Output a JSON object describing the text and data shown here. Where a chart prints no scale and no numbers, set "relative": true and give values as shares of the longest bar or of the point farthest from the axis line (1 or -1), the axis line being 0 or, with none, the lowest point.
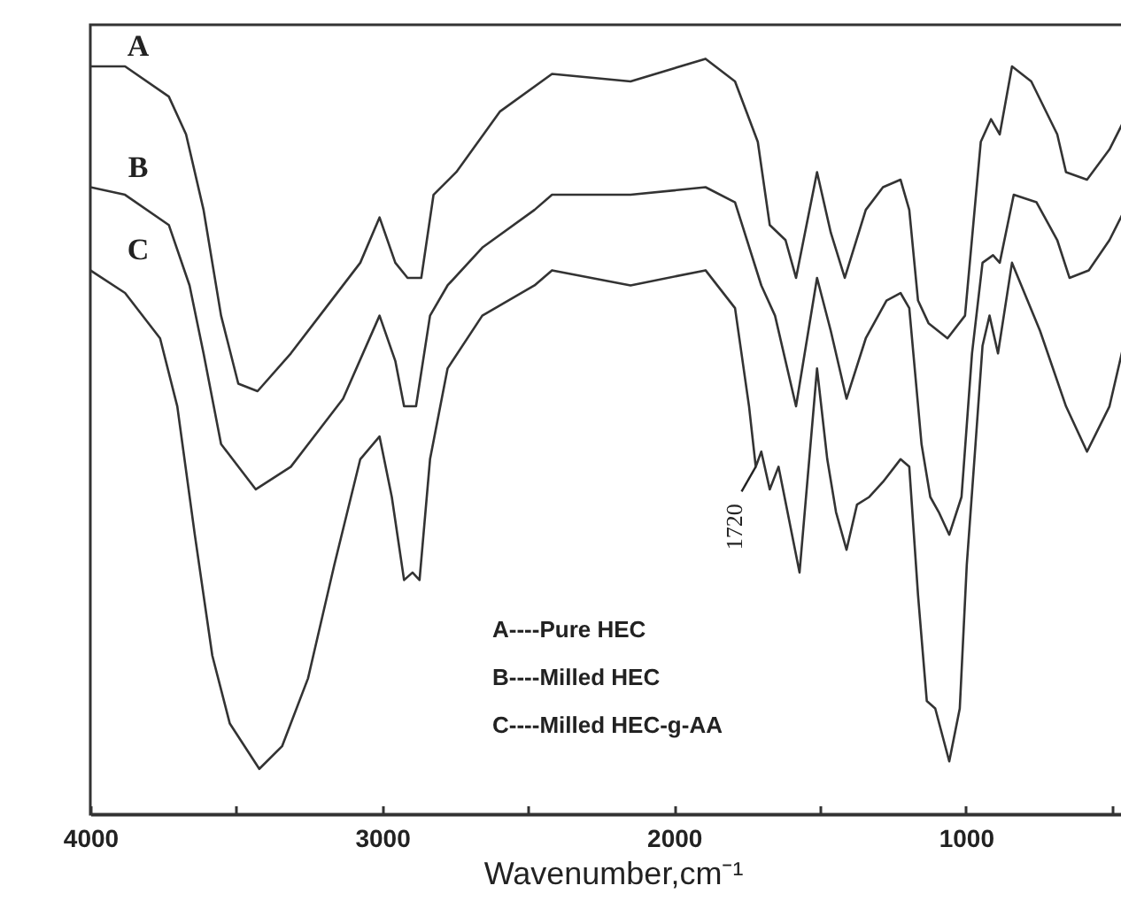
{
  "chart_data": {
    "type": "line",
    "relative": true,
    "xlabel": "Wavenumber,cm⁻¹",
    "xlim": [
      4000,
      420
    ],
    "xticks": [
      4000,
      {
        "value": 3500,
        "label": null
      },
      3000,
      {
        "value": 2500,
        "label": null
      },
      2000,
      {
        "value": 1500,
        "label": null
      },
      1000,
      {
        "value": 500,
        "label": null
      }
    ],
    "grid": false,
    "series": [
      {
        "name": "A",
        "color": "#333333",
        "x": [
          4000,
          3881,
          3731,
          3672,
          3612,
          3552,
          3493,
          3427,
          3313,
          3194,
          3075,
          3009,
          2955,
          2913,
          2866,
          2824,
          2746,
          2597,
          2418,
          2149,
          1892,
          1791,
          1713,
          1672,
          1618,
          1582,
          1510,
          1463,
          1415,
          1343,
          1284,
          1224,
          1194,
          1164,
          1128,
          1063,
          1003,
          949,
          914,
          884,
          842,
          776,
          687,
          657,
          585,
          508,
          430
        ],
        "values": [
          0.99,
          0.99,
          0.95,
          0.9,
          0.8,
          0.66,
          0.57,
          0.56,
          0.61,
          0.67,
          0.73,
          0.79,
          0.73,
          0.71,
          0.71,
          0.82,
          0.85,
          0.93,
          0.98,
          0.97,
          1,
          0.97,
          0.89,
          0.78,
          0.76,
          0.71,
          0.85,
          0.77,
          0.71,
          0.8,
          0.83,
          0.84,
          0.8,
          0.68,
          0.65,
          0.63,
          0.66,
          0.89,
          0.92,
          0.9,
          0.99,
          0.97,
          0.9,
          0.85,
          0.84,
          0.88,
          0.94
        ]
      },
      {
        "name": "B",
        "color": "#333333",
        "x": [
          4000,
          3881,
          3731,
          3660,
          3612,
          3552,
          3433,
          3313,
          3134,
          3009,
          2955,
          2925,
          2884,
          2836,
          2776,
          2657,
          2478,
          2418,
          2149,
          1892,
          1791,
          1701,
          1654,
          1582,
          1510,
          1463,
          1409,
          1343,
          1272,
          1224,
          1194,
          1152,
          1122,
          1093,
          1057,
          1015,
          979,
          943,
          907,
          884,
          836,
          758,
          687,
          645,
          579,
          508,
          430
        ],
        "values": [
          0.83,
          0.82,
          0.78,
          0.7,
          0.61,
          0.49,
          0.43,
          0.46,
          0.55,
          0.66,
          0.6,
          0.54,
          0.54,
          0.66,
          0.7,
          0.75,
          0.8,
          0.82,
          0.82,
          0.83,
          0.81,
          0.7,
          0.66,
          0.54,
          0.71,
          0.64,
          0.55,
          0.63,
          0.68,
          0.69,
          0.67,
          0.49,
          0.42,
          0.4,
          0.37,
          0.42,
          0.61,
          0.73,
          0.74,
          0.73,
          0.82,
          0.81,
          0.76,
          0.71,
          0.72,
          0.76,
          0.82
        ]
      },
      {
        "name": "C",
        "color": "#333333",
        "x": [
          4000,
          3881,
          3761,
          3702,
          3642,
          3582,
          3522,
          3421,
          3343,
          3254,
          3164,
          3075,
          3009,
          2967,
          2925,
          2896,
          2872,
          2836,
          2776,
          2657,
          2478,
          2418,
          2149,
          1892,
          1791,
          1743,
          1720,
          1701,
          1672,
          1642,
          1570,
          1510,
          1475,
          1445,
          1409,
          1373,
          1331,
          1284,
          1224,
          1194,
          1164,
          1134,
          1105,
          1057,
          1021,
          997,
          967,
          943,
          919,
          890,
          842,
          746,
          657,
          585,
          508,
          430
        ],
        "values": [
          0.72,
          0.69,
          0.63,
          0.54,
          0.37,
          0.21,
          0.12,
          0.06,
          0.09,
          0.18,
          0.33,
          0.47,
          0.5,
          0.42,
          0.31,
          0.32,
          0.31,
          0.47,
          0.59,
          0.66,
          0.7,
          0.72,
          0.7,
          0.72,
          0.67,
          0.54,
          0.46,
          0.48,
          0.43,
          0.46,
          0.32,
          0.59,
          0.47,
          0.4,
          0.35,
          0.41,
          0.42,
          0.44,
          0.47,
          0.46,
          0.29,
          0.15,
          0.14,
          0.07,
          0.14,
          0.33,
          0.49,
          0.62,
          0.66,
          0.61,
          0.73,
          0.64,
          0.54,
          0.48,
          0.54,
          0.67
        ]
      }
    ],
    "annotations": [
      "A----Pure HEC",
      "B----Milled HEC",
      "C----Milled HEC-g-AA",
      {
        "text": "1720",
        "x": 1720,
        "y": 0.46
      }
    ]
  }
}
